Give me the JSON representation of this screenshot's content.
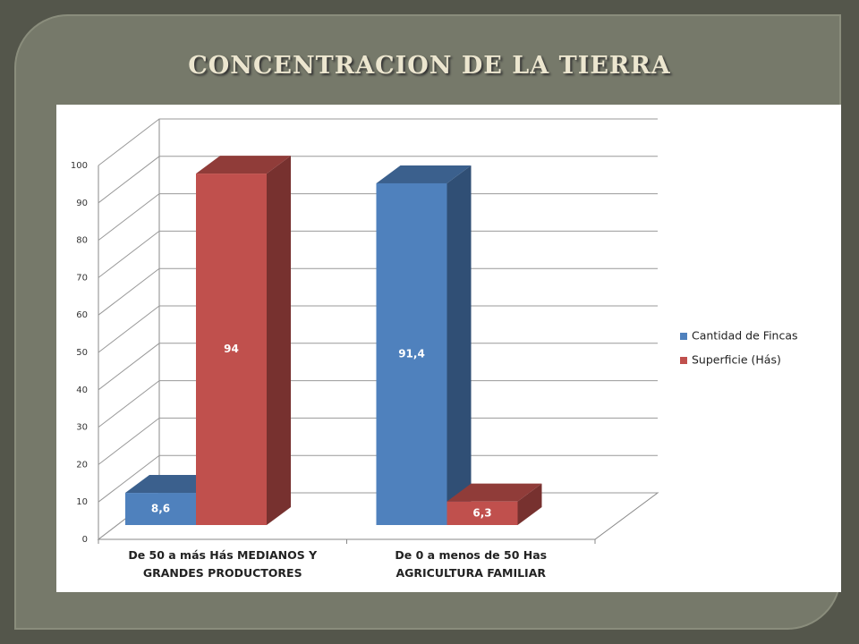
{
  "chart_data": {
    "type": "bar3d",
    "title": "CONCENTRACION DE LA TIERRA",
    "categories": [
      "De 50 a más Hás MEDIANOS Y GRANDES PRODUCTORES",
      "De 0 a menos de 50 Has AGRICULTURA FAMILIAR"
    ],
    "series": [
      {
        "name": "Cantidad de Fincas",
        "color": "#4f81bd",
        "values": [
          8.6,
          91.4
        ],
        "value_labels": [
          "8,6",
          "91,4"
        ]
      },
      {
        "name": "Superficie (Hás)",
        "color": "#c0504d",
        "values": [
          94,
          6.3
        ],
        "value_labels": [
          "94",
          "6,3"
        ]
      }
    ],
    "ylim": [
      0,
      100
    ],
    "yticks": [
      0,
      10,
      20,
      30,
      40,
      50,
      60,
      70,
      80,
      90,
      100
    ],
    "grid": true,
    "legend": "right"
  }
}
